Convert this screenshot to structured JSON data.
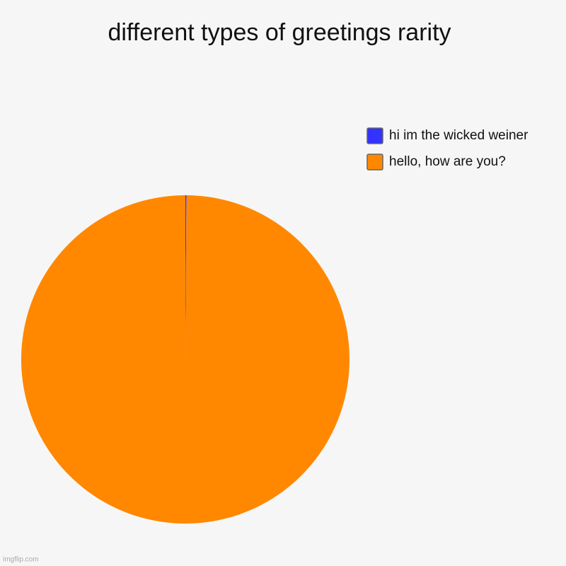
{
  "chart_data": {
    "type": "pie",
    "title": "different types of greetings rarity",
    "series": [
      {
        "name": "hi im the wicked weiner",
        "color": "#3333ff",
        "values": [
          0.1
        ]
      },
      {
        "name": "hello, how are you?",
        "color": "#ff8800",
        "values": [
          99.9
        ]
      }
    ],
    "legend": "top-right"
  },
  "watermark": "imgflip.com"
}
